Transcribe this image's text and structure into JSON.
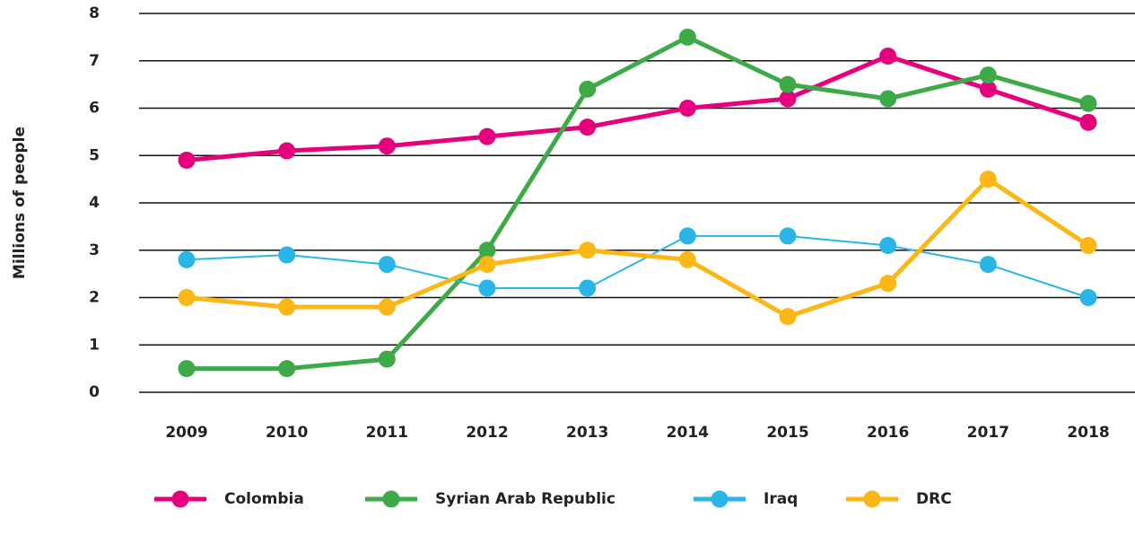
{
  "chart_data": {
    "type": "line",
    "y_label": "Millions of people",
    "categories": [
      "2009",
      "2010",
      "2011",
      "2012",
      "2013",
      "2014",
      "2015",
      "2016",
      "2017",
      "2018"
    ],
    "series": [
      {
        "name": "Colombia",
        "color": "#e6007e",
        "line_width": 5,
        "values": [
          4.9,
          5.1,
          5.2,
          5.4,
          5.6,
          6.0,
          6.2,
          7.1,
          6.4,
          5.7
        ]
      },
      {
        "name": "Syrian Arab Republic",
        "color": "#3daa47",
        "line_width": 5,
        "values": [
          0.5,
          0.5,
          0.7,
          3.0,
          6.4,
          7.5,
          6.5,
          6.2,
          6.7,
          6.1
        ]
      },
      {
        "name": "Iraq",
        "color": "#29b6e6",
        "line_width": 2,
        "values": [
          2.8,
          2.9,
          2.7,
          2.2,
          2.2,
          3.3,
          3.3,
          3.1,
          2.7,
          2.0
        ]
      },
      {
        "name": "DRC",
        "color": "#fbb716",
        "line_width": 5,
        "values": [
          2.0,
          1.8,
          1.8,
          2.7,
          3.0,
          2.8,
          1.6,
          2.3,
          4.5,
          3.1
        ]
      }
    ],
    "ylim": [
      0,
      8
    ],
    "yticks": [
      0,
      1,
      2,
      3,
      4,
      5,
      6,
      7,
      8
    ],
    "grid": true
  }
}
